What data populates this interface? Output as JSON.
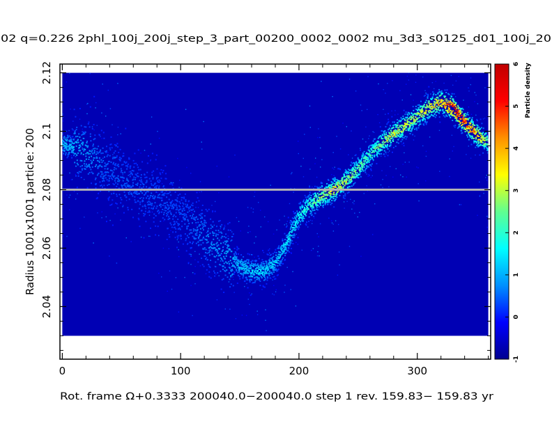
{
  "header": {
    "title": "02 q=0.226  2phl_100j_200j_step_3_part_00200_0002_0002   mu_3d3_s0125_d01_100j_20"
  },
  "footer": {
    "caption": "Rot. frame Ω+0.3333 200040.0−200040.0 step   1 rev. 159.83−  159.83 yr"
  },
  "colors": {
    "background_field": "#0000b4",
    "reference_line": "#b4b4b4",
    "colorbar_stops": [
      "#000090",
      "#0000ff",
      "#0090ff",
      "#00ffff",
      "#60ff90",
      "#ffff00",
      "#ff9000",
      "#ff0000",
      "#c00000"
    ]
  },
  "chart_data": {
    "type": "heatmap",
    "title": "02 q=0.226  2phl_100j_200j_step_3_part_00200_0002_0002   mu_3d3_s0125_d01_100j_20",
    "xlabel": "",
    "ylabel": "Radius 1001x1001 particle:  200",
    "xlim": [
      -2,
      362
    ],
    "ylim": [
      2.022,
      2.123
    ],
    "data_extent_y": [
      2.03,
      2.12
    ],
    "xticks": [
      0,
      100,
      200,
      300
    ],
    "yticks": [
      2.04,
      2.06,
      2.08,
      2.1,
      2.12
    ],
    "xtick_labels": [
      "0",
      "100",
      "200",
      "300"
    ],
    "ytick_labels": [
      "2.04",
      "2.06",
      "2.08",
      "2.1",
      "2.12"
    ],
    "reference_line_y": 2.08,
    "ridge": {
      "x": [
        0,
        20,
        40,
        60,
        80,
        100,
        120,
        140,
        150,
        160,
        170,
        180,
        190,
        200,
        210,
        220,
        230,
        240,
        250,
        260,
        270,
        280,
        290,
        300,
        310,
        320,
        330,
        340,
        350,
        360
      ],
      "y": [
        2.096,
        2.093,
        2.087,
        2.081,
        2.077,
        2.071,
        2.064,
        2.057,
        2.054,
        2.052,
        2.052,
        2.055,
        2.062,
        2.071,
        2.075,
        2.078,
        2.08,
        2.083,
        2.087,
        2.092,
        2.096,
        2.099,
        2.102,
        2.105,
        2.108,
        2.11,
        2.108,
        2.103,
        2.099,
        2.096
      ]
    },
    "ridge_peak_density": {
      "x": [
        0,
        40,
        100,
        140,
        160,
        180,
        200,
        230,
        260,
        280,
        300,
        320,
        330,
        340,
        350,
        360
      ],
      "density": [
        1.2,
        0.4,
        0.3,
        0.9,
        1.3,
        1.2,
        1.6,
        3.2,
        2.0,
        3.0,
        2.8,
        3.6,
        5.2,
        4.6,
        3.8,
        2.6
      ]
    },
    "colorbar": {
      "label": "Particle density",
      "min": -1,
      "max": 6,
      "ticks": [
        -1,
        0,
        1,
        2,
        3,
        4,
        5,
        6
      ],
      "tick_labels": [
        "-1",
        "0",
        "1",
        "2",
        "3",
        "4",
        "5",
        "6"
      ]
    },
    "grid": false,
    "legend": "none"
  }
}
